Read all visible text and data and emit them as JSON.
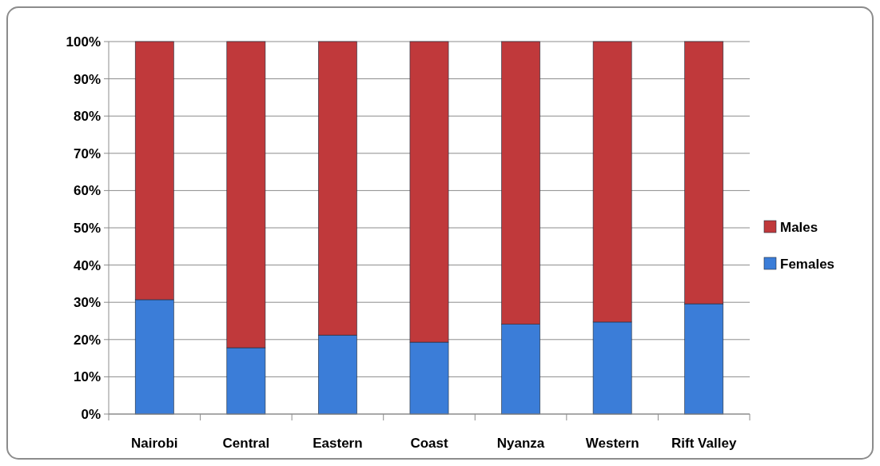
{
  "chart_data": {
    "type": "bar",
    "stacked": true,
    "categories": [
      "Nairobi",
      "Central",
      "Eastern",
      "Coast",
      "Nyanza",
      "Western",
      "Rift Valley"
    ],
    "series": [
      {
        "name": "Females",
        "color": "#3b7dd8",
        "values": [
          30.7,
          17.8,
          21.2,
          19.3,
          24.1,
          24.7,
          29.6
        ]
      },
      {
        "name": "Males",
        "color": "#c0393b",
        "values": [
          69.3,
          82.2,
          78.8,
          80.7,
          75.9,
          75.3,
          70.4
        ]
      }
    ],
    "ylim": [
      0,
      100
    ],
    "yticks": [
      {
        "value": 0,
        "label": "0%"
      },
      {
        "value": 10,
        "label": "10%"
      },
      {
        "value": 20,
        "label": "20%"
      },
      {
        "value": 30,
        "label": "30%"
      },
      {
        "value": 40,
        "label": "40%"
      },
      {
        "value": 50,
        "label": "50%"
      },
      {
        "value": 60,
        "label": "60%"
      },
      {
        "value": 70,
        "label": "70%"
      },
      {
        "value": 80,
        "label": "80%"
      },
      {
        "value": 90,
        "label": "90%"
      },
      {
        "value": 100,
        "label": "100%"
      }
    ],
    "grid": "y",
    "legend": "right"
  }
}
